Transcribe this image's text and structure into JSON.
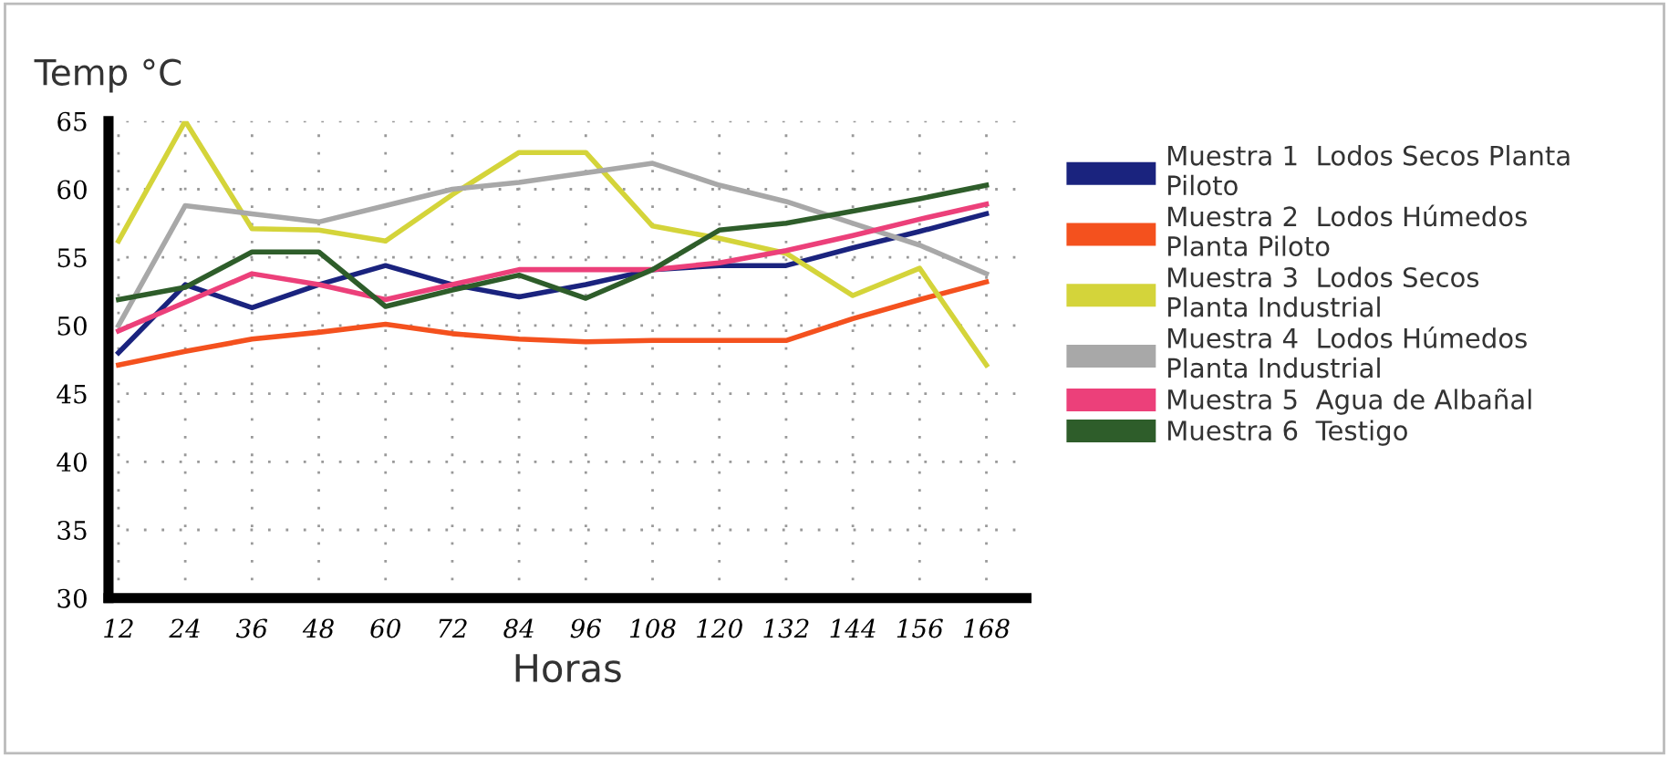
{
  "chart_data": {
    "type": "line",
    "ylabel": "Temp °C",
    "xlabel": "Horas",
    "categories": [
      "12",
      "24",
      "36",
      "48",
      "60",
      "72",
      "84",
      "96",
      "108",
      "120",
      "132",
      "144",
      "156",
      "168"
    ],
    "ylim": [
      30,
      65
    ],
    "yticks": [
      30,
      35,
      40,
      45,
      50,
      55,
      60,
      65
    ],
    "grid": true,
    "legend": "right",
    "marker": "none",
    "line_style": "solid",
    "series": [
      {
        "name": "Muestra 1  Lodos Secos Planta\nPiloto",
        "color": "#1a237e",
        "values": [
          48,
          53,
          51.3,
          53,
          54.4,
          53,
          52.1,
          53,
          54.1,
          54.4,
          54.4,
          55.7,
          56.9,
          58.2
        ]
      },
      {
        "name": "Muestra 2  Lodos Húmedos\nPlanta Piloto",
        "color": "#f4511e",
        "values": [
          47.1,
          48.1,
          49,
          49.5,
          50.1,
          49.4,
          49,
          48.8,
          48.9,
          48.9,
          48.9,
          50.5,
          51.9,
          53.2
        ]
      },
      {
        "name": "Muestra 3  Lodos Secos\nPlanta Industrial",
        "color": "#d4d43a",
        "values": [
          56.2,
          65,
          57.1,
          57,
          56.2,
          59.6,
          62.7,
          62.7,
          57.3,
          56.4,
          55.3,
          52.2,
          54.2,
          47.1
        ]
      },
      {
        "name": "Muestra 4  Lodos Húmedos\nPlanta Industrial",
        "color": "#a8a8a8",
        "values": [
          50,
          58.8,
          58.2,
          57.6,
          58.8,
          60,
          60.5,
          61.2,
          61.9,
          60.3,
          59.1,
          57.5,
          55.9,
          53.8
        ]
      },
      {
        "name": "Muestra 5  Agua de Albañal",
        "color": "#ec407a",
        "values": [
          49.6,
          51.7,
          53.8,
          53,
          51.9,
          53,
          54.1,
          54.1,
          54.1,
          54.6,
          55.5,
          56.6,
          57.8,
          58.9
        ]
      },
      {
        "name": "Muestra 6  Testigo",
        "color": "#2e5d2a",
        "values": [
          51.9,
          52.8,
          55.4,
          55.4,
          51.4,
          52.6,
          53.7,
          52,
          54.1,
          57,
          57.5,
          58.4,
          59.3,
          60.3
        ]
      }
    ]
  }
}
